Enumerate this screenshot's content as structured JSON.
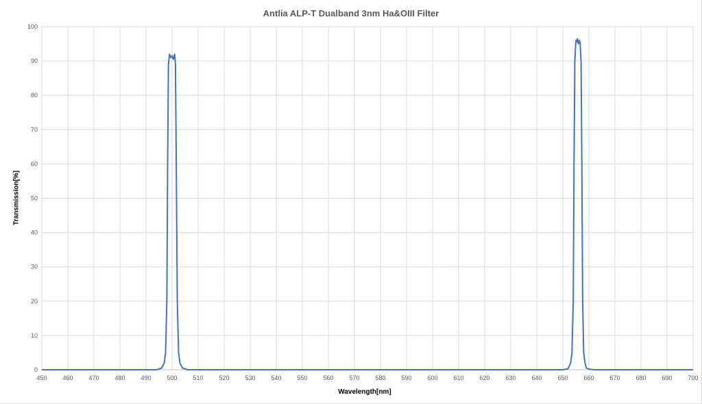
{
  "chart_data": {
    "type": "line",
    "title": "Antlia ALP-T Dualband 3nm Ha&OIII Filter",
    "xlabel": "Wavelength[nm]",
    "ylabel": "Transmission[%]",
    "xlim": [
      450,
      700
    ],
    "ylim": [
      0,
      100
    ],
    "xticks": [
      450,
      460,
      470,
      480,
      490,
      500,
      510,
      520,
      530,
      540,
      550,
      560,
      570,
      580,
      590,
      600,
      610,
      620,
      630,
      640,
      650,
      660,
      670,
      680,
      690,
      700
    ],
    "yticks": [
      0,
      10,
      20,
      30,
      40,
      50,
      60,
      70,
      80,
      90,
      100
    ],
    "grid": true,
    "legend": "none",
    "series": [
      {
        "color": "#4472c4",
        "x": [
          450,
          494,
          496,
          497,
          497.5,
          498,
          498.3,
          498.6,
          499,
          499.5,
          500,
          500.5,
          501,
          501.3,
          501.6,
          502,
          502.5,
          503,
          504,
          506,
          650,
          652,
          653,
          653.5,
          654,
          654.3,
          654.6,
          655,
          655.3,
          655.6,
          656,
          656.3,
          656.6,
          657,
          657.3,
          657.6,
          658,
          658.5,
          659,
          660,
          662,
          700
        ],
        "y": [
          0,
          0,
          0.5,
          2,
          5,
          20,
          60,
          89,
          92,
          91,
          91.5,
          90.5,
          92,
          89,
          60,
          20,
          5,
          2,
          0.5,
          0,
          0,
          0.3,
          2,
          5,
          20,
          60,
          90,
          96,
          95.5,
          96.5,
          95,
          96,
          95.5,
          90,
          60,
          20,
          5,
          2,
          0.5,
          0.2,
          0,
          0
        ]
      }
    ]
  }
}
